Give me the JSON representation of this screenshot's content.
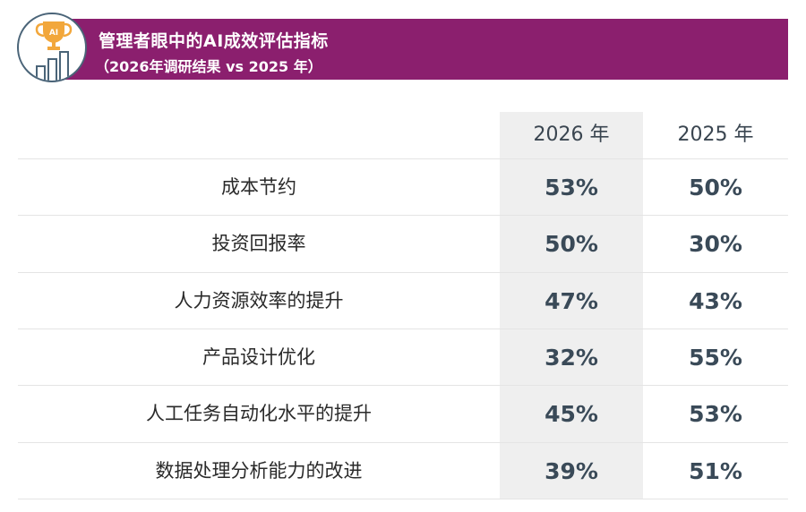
{
  "header": {
    "title": "管理者眼中的AI成效评估指标",
    "subtitle": "（2026年调研结果 vs 2025 年）",
    "icon": "ai-trophy-bar-chart-icon",
    "icon_text": "AI",
    "banner_color": "#8b1f6e"
  },
  "chart_data": {
    "type": "table",
    "columns": [
      "2026 年",
      "2025 年"
    ],
    "rows": [
      {
        "label": "成本节约",
        "values": [
          "53%",
          "50%"
        ]
      },
      {
        "label": "投资回报率",
        "values": [
          "50%",
          "30%"
        ]
      },
      {
        "label": "人力资源效率的提升",
        "values": [
          "47%",
          "43%"
        ]
      },
      {
        "label": "产品设计优化",
        "values": [
          "32%",
          "55%"
        ]
      },
      {
        "label": "人工任务自动化水平的提升",
        "values": [
          "45%",
          "53%"
        ]
      },
      {
        "label": "数据处理分析能力的改进",
        "values": [
          "39%",
          "51%"
        ]
      }
    ],
    "highlight_column": 0,
    "highlight_color": "#efefef"
  }
}
